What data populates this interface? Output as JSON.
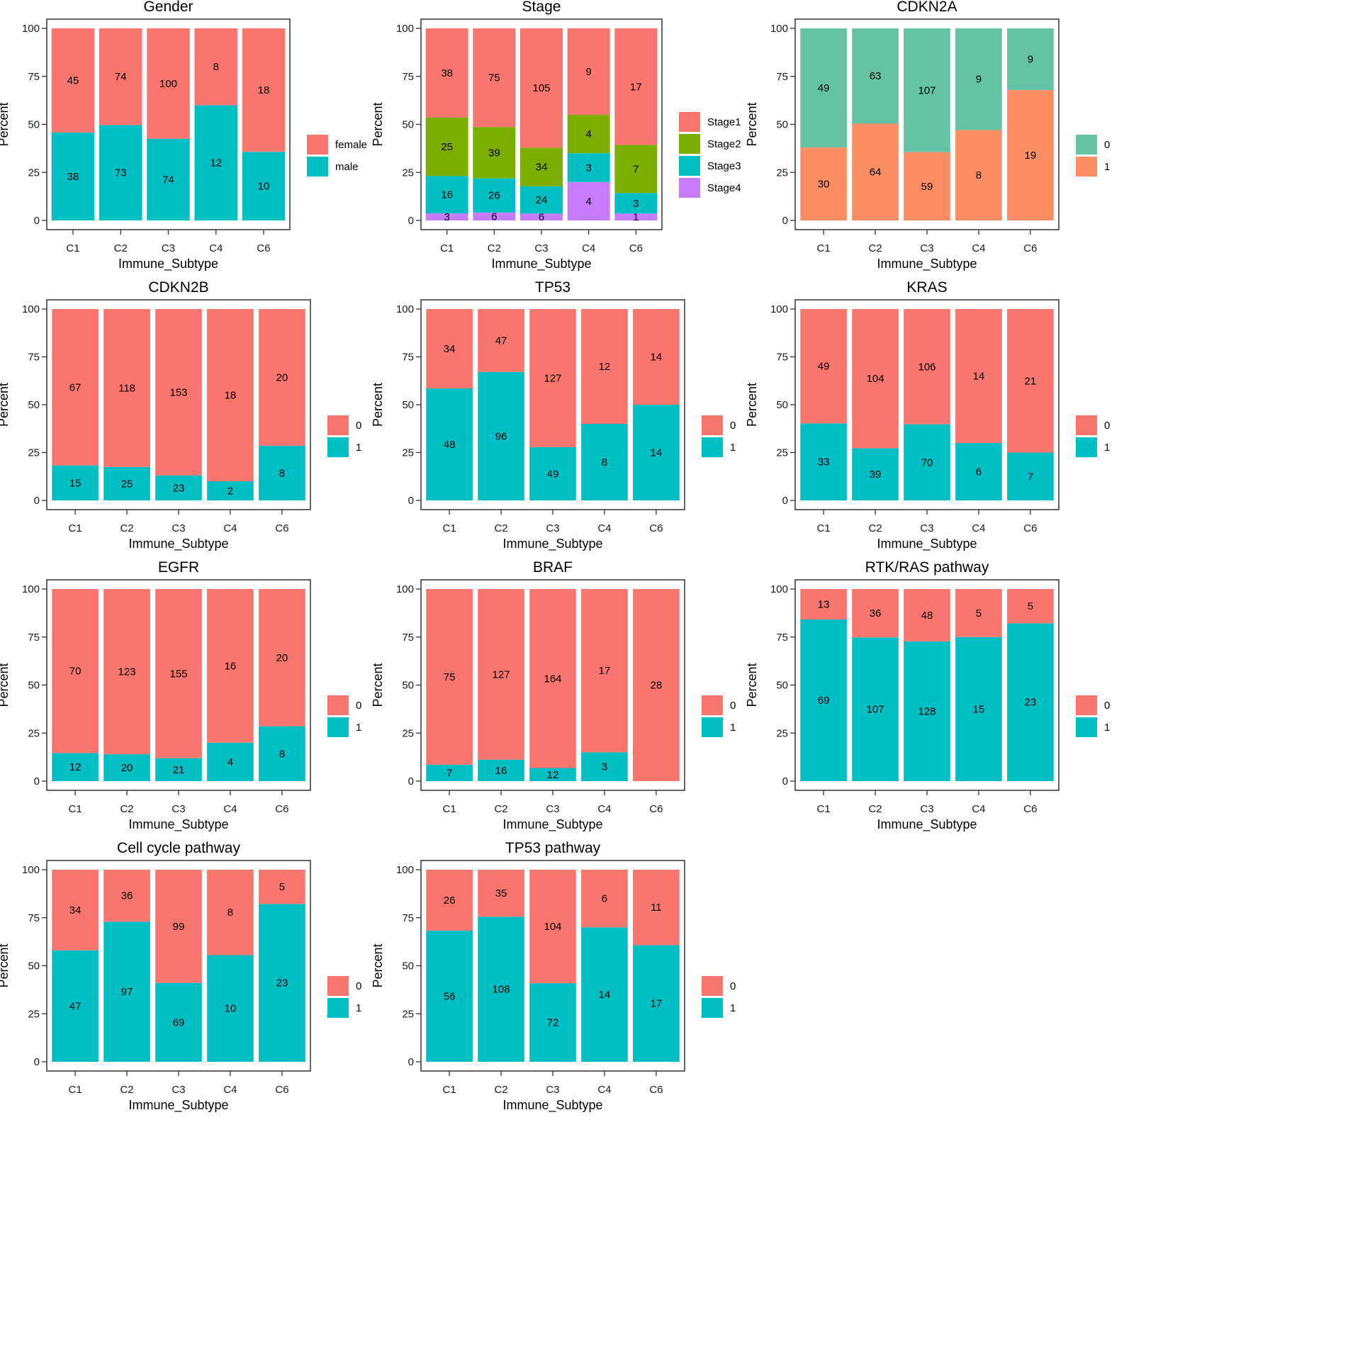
{
  "chart_data": [
    {
      "type": "bar",
      "stacked": true,
      "normalized": true,
      "title": "Gender",
      "xlabel": "Immune_Subtype",
      "ylabel": "Percent",
      "ylim": [
        0,
        100
      ],
      "yticks": [
        "0",
        "25",
        "50",
        "75",
        "100"
      ],
      "categories": [
        "C1",
        "C2",
        "C3",
        "C4",
        "C6"
      ],
      "series": [
        {
          "name": "female",
          "color": "#F8766D",
          "values": [
            45,
            74,
            100,
            8,
            18
          ]
        },
        {
          "name": "male",
          "color": "#00BFC4",
          "values": [
            38,
            73,
            74,
            12,
            10
          ]
        }
      ]
    },
    {
      "type": "bar",
      "stacked": true,
      "normalized": true,
      "title": "Stage",
      "xlabel": "Immune_Subtype",
      "ylabel": "Percent",
      "ylim": [
        0,
        100
      ],
      "yticks": [
        "0",
        "25",
        "50",
        "75",
        "100"
      ],
      "categories": [
        "C1",
        "C2",
        "C3",
        "C4",
        "C6"
      ],
      "series": [
        {
          "name": "Stage1",
          "color": "#F8766D",
          "values": [
            38,
            75,
            105,
            9,
            17
          ]
        },
        {
          "name": "Stage2",
          "color": "#7CAE00",
          "values": [
            25,
            39,
            34,
            4,
            7
          ]
        },
        {
          "name": "Stage3",
          "color": "#00BFC4",
          "values": [
            16,
            26,
            24,
            3,
            3
          ]
        },
        {
          "name": "Stage4",
          "color": "#C77CFF",
          "values": [
            3,
            6,
            6,
            4,
            1
          ]
        }
      ]
    },
    {
      "type": "bar",
      "stacked": true,
      "normalized": true,
      "title": "CDKN2A",
      "xlabel": "Immune_Subtype",
      "ylabel": "Percent",
      "ylim": [
        0,
        100
      ],
      "yticks": [
        "0",
        "25",
        "50",
        "75",
        "100"
      ],
      "categories": [
        "C1",
        "C2",
        "C3",
        "C4",
        "C6"
      ],
      "series": [
        {
          "name": "0",
          "color": "#66C2A5",
          "values": [
            49,
            63,
            107,
            9,
            9
          ]
        },
        {
          "name": "1",
          "color": "#FC8D62",
          "values": [
            30,
            64,
            59,
            8,
            19
          ]
        }
      ]
    },
    {
      "type": "bar",
      "stacked": true,
      "normalized": true,
      "title": "CDKN2B",
      "xlabel": "Immune_Subtype",
      "ylabel": "Percent",
      "ylim": [
        0,
        100
      ],
      "yticks": [
        "0",
        "25",
        "50",
        "75",
        "100"
      ],
      "categories": [
        "C1",
        "C2",
        "C3",
        "C4",
        "C6"
      ],
      "series": [
        {
          "name": "0",
          "color": "#F8766D",
          "values": [
            67,
            118,
            153,
            18,
            20
          ]
        },
        {
          "name": "1",
          "color": "#00BFC4",
          "values": [
            15,
            25,
            23,
            2,
            8
          ]
        }
      ]
    },
    {
      "type": "bar",
      "stacked": true,
      "normalized": true,
      "title": "TP53",
      "xlabel": "Immune_Subtype",
      "ylabel": "Percent",
      "ylim": [
        0,
        100
      ],
      "yticks": [
        "0",
        "25",
        "50",
        "75",
        "100"
      ],
      "categories": [
        "C1",
        "C2",
        "C3",
        "C4",
        "C6"
      ],
      "series": [
        {
          "name": "0",
          "color": "#F8766D",
          "values": [
            34,
            47,
            127,
            12,
            14
          ]
        },
        {
          "name": "1",
          "color": "#00BFC4",
          "values": [
            48,
            96,
            49,
            8,
            14
          ]
        }
      ]
    },
    {
      "type": "bar",
      "stacked": true,
      "normalized": true,
      "title": "KRAS",
      "xlabel": "Immune_Subtype",
      "ylabel": "Percent",
      "ylim": [
        0,
        100
      ],
      "yticks": [
        "0",
        "25",
        "50",
        "75",
        "100"
      ],
      "categories": [
        "C1",
        "C2",
        "C3",
        "C4",
        "C6"
      ],
      "series": [
        {
          "name": "0",
          "color": "#F8766D",
          "values": [
            49,
            104,
            106,
            14,
            21
          ]
        },
        {
          "name": "1",
          "color": "#00BFC4",
          "values": [
            33,
            39,
            70,
            6,
            7
          ]
        }
      ]
    },
    {
      "type": "bar",
      "stacked": true,
      "normalized": true,
      "title": "EGFR",
      "xlabel": "Immune_Subtype",
      "ylabel": "Percent",
      "ylim": [
        0,
        100
      ],
      "yticks": [
        "0",
        "25",
        "50",
        "75",
        "100"
      ],
      "categories": [
        "C1",
        "C2",
        "C3",
        "C4",
        "C6"
      ],
      "series": [
        {
          "name": "0",
          "color": "#F8766D",
          "values": [
            70,
            123,
            155,
            16,
            20
          ]
        },
        {
          "name": "1",
          "color": "#00BFC4",
          "values": [
            12,
            20,
            21,
            4,
            8
          ]
        }
      ]
    },
    {
      "type": "bar",
      "stacked": true,
      "normalized": true,
      "title": "BRAF",
      "xlabel": "Immune_Subtype",
      "ylabel": "Percent",
      "ylim": [
        0,
        100
      ],
      "yticks": [
        "0",
        "25",
        "50",
        "75",
        "100"
      ],
      "categories": [
        "C1",
        "C2",
        "C3",
        "C4",
        "C6"
      ],
      "series": [
        {
          "name": "0",
          "color": "#F8766D",
          "values": [
            75,
            127,
            164,
            17,
            28
          ]
        },
        {
          "name": "1",
          "color": "#00BFC4",
          "values": [
            7,
            16,
            12,
            3,
            0
          ]
        }
      ]
    },
    {
      "type": "bar",
      "stacked": true,
      "normalized": true,
      "title": "RTK/RAS pathway",
      "xlabel": "Immune_Subtype",
      "ylabel": "Percent",
      "ylim": [
        0,
        100
      ],
      "yticks": [
        "0",
        "25",
        "50",
        "75",
        "100"
      ],
      "categories": [
        "C1",
        "C2",
        "C3",
        "C4",
        "C6"
      ],
      "series": [
        {
          "name": "0",
          "color": "#F8766D",
          "values": [
            13,
            36,
            48,
            5,
            5
          ]
        },
        {
          "name": "1",
          "color": "#00BFC4",
          "values": [
            69,
            107,
            128,
            15,
            23
          ]
        }
      ]
    },
    {
      "type": "bar",
      "stacked": true,
      "normalized": true,
      "title": "Cell cycle pathway",
      "xlabel": "Immune_Subtype",
      "ylabel": "Percent",
      "ylim": [
        0,
        100
      ],
      "yticks": [
        "0",
        "25",
        "50",
        "75",
        "100"
      ],
      "categories": [
        "C1",
        "C2",
        "C3",
        "C4",
        "C6"
      ],
      "series": [
        {
          "name": "0",
          "color": "#F8766D",
          "values": [
            34,
            36,
            99,
            8,
            5
          ]
        },
        {
          "name": "1",
          "color": "#00BFC4",
          "values": [
            47,
            97,
            69,
            10,
            23
          ]
        }
      ]
    },
    {
      "type": "bar",
      "stacked": true,
      "normalized": true,
      "title": "TP53 pathway",
      "xlabel": "Immune_Subtype",
      "ylabel": "Percent",
      "ylim": [
        0,
        100
      ],
      "yticks": [
        "0",
        "25",
        "50",
        "75",
        "100"
      ],
      "categories": [
        "C1",
        "C2",
        "C3",
        "C4",
        "C6"
      ],
      "series": [
        {
          "name": "0",
          "color": "#F8766D",
          "values": [
            26,
            35,
            104,
            6,
            11
          ]
        },
        {
          "name": "1",
          "color": "#00BFC4",
          "values": [
            56,
            108,
            72,
            14,
            17
          ]
        }
      ]
    }
  ]
}
